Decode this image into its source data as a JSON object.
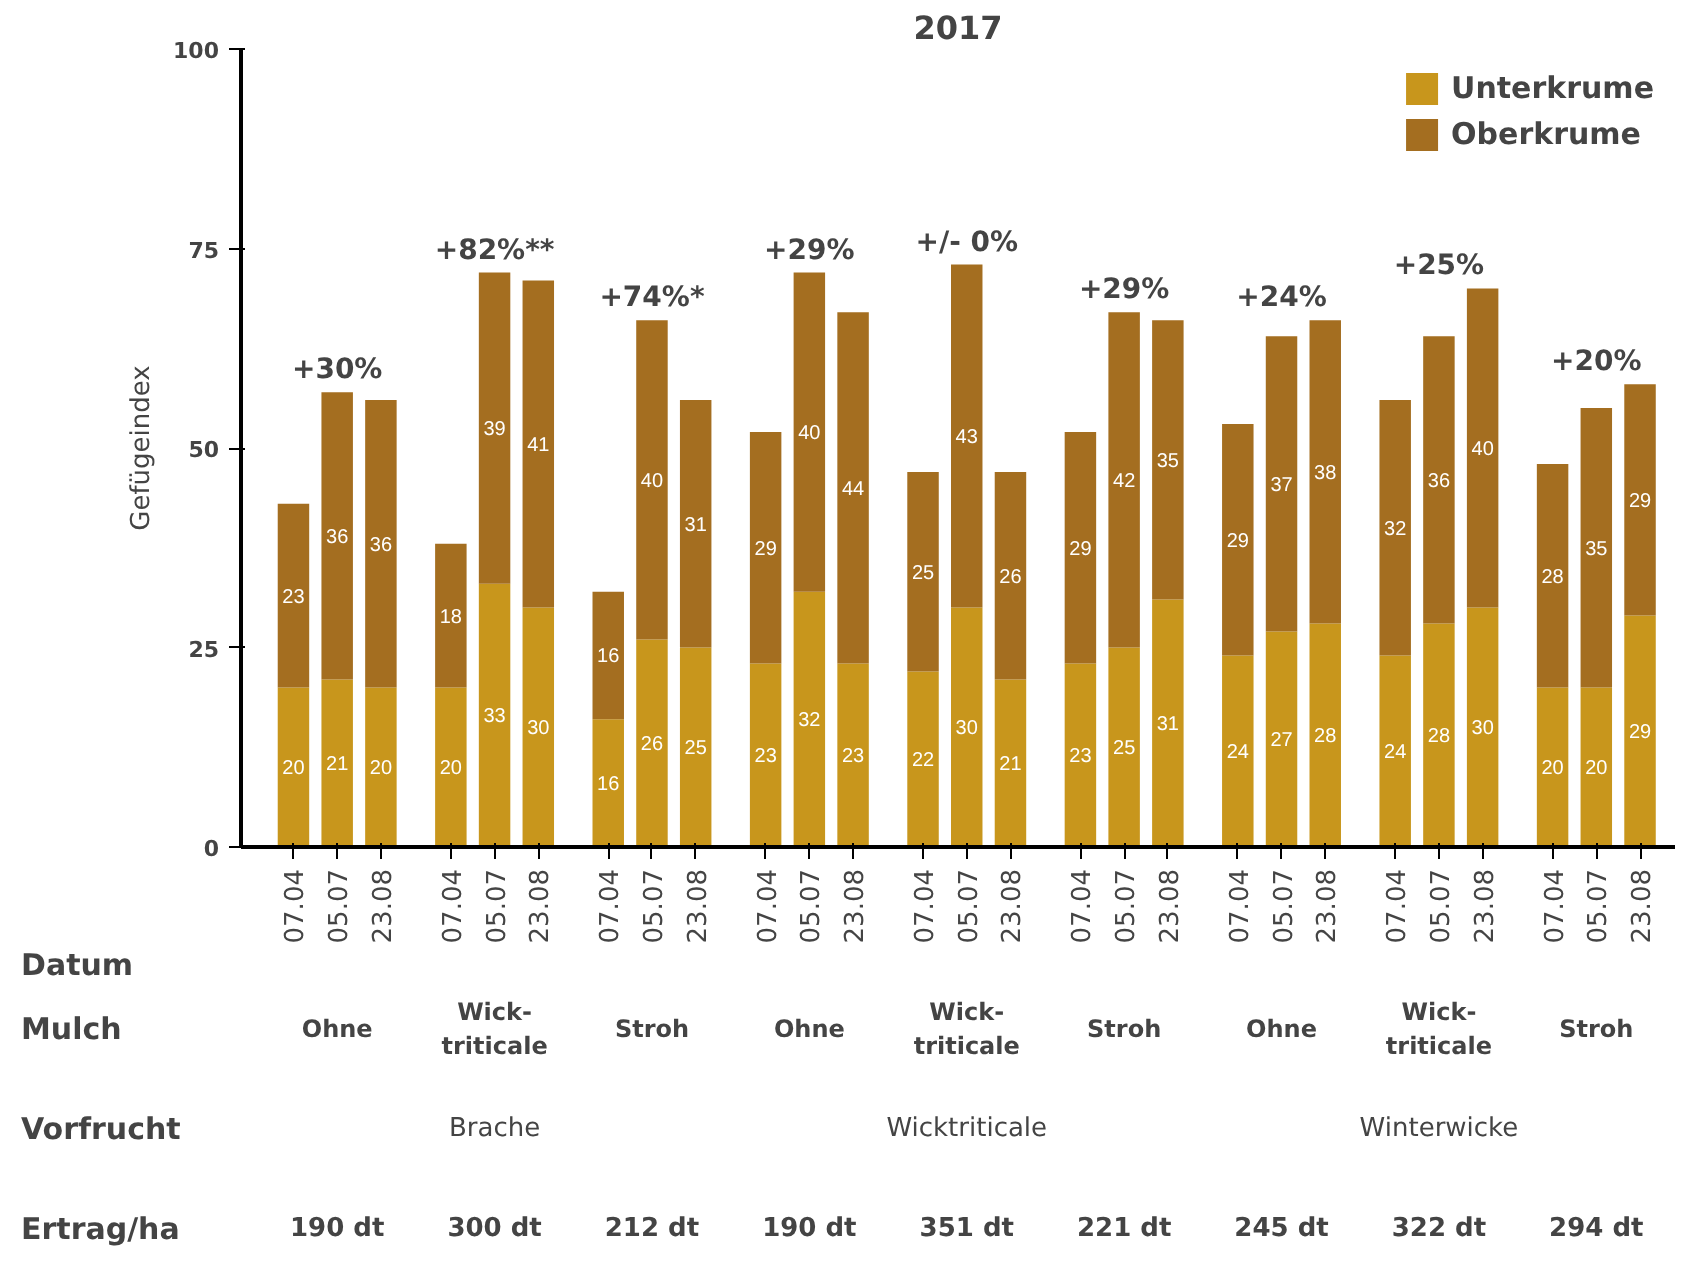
{
  "chart_data": {
    "type": "bar",
    "title": "2017",
    "ylabel": "Gefügeindex",
    "stacked": true,
    "data_labels": true,
    "legend": "top right",
    "grid": false,
    "categories": [
      "07.04",
      "05.07",
      "23.08",
      "07.04",
      "05.07",
      "23.08",
      "07.04",
      "05.07",
      "23.08",
      "07.04",
      "05.07",
      "23.08",
      "07.04",
      "05.07",
      "23.08",
      "07.04",
      "05.07",
      "23.08",
      "07.04",
      "05.07",
      "23.08",
      "07.04",
      "05.07",
      "23.08",
      "07.04",
      "05.07",
      "23.08"
    ],
    "series": [
      {
        "name": "Unterkrume",
        "color": "#c8961c",
        "values": [
          20,
          21,
          20,
          20,
          33,
          30,
          16,
          26,
          25,
          23,
          32,
          23,
          22,
          30,
          21,
          23,
          25,
          31,
          24,
          27,
          28,
          24,
          28,
          30,
          20,
          20,
          29
        ]
      },
      {
        "name": "Oberkrume",
        "color": "#a46e20",
        "values": [
          23,
          36,
          36,
          18,
          39,
          41,
          16,
          40,
          31,
          29,
          40,
          44,
          25,
          43,
          26,
          29,
          42,
          35,
          29,
          37,
          38,
          32,
          36,
          40,
          28,
          35,
          29
        ]
      }
    ],
    "ylim": [
      0,
      100
    ],
    "yticks": [
      0,
      25,
      50,
      75,
      100
    ],
    "annotations": [
      "+30%",
      "+82%**",
      "+74%*",
      "+29%",
      "+/- 0%",
      "+29%",
      "+24%",
      "+25%",
      "+20%",
      "Datum",
      "Mulch",
      "Vorfrucht",
      "Ertrag/ha",
      "Ohne",
      "Wick-\ntriticale",
      "Stroh",
      "Ohne",
      "Wick-\ntriticale",
      "Stroh",
      "Ohne",
      "Wick-\ntriticale",
      "Stroh",
      "Brache",
      "Wicktriticale",
      "Winterwicke",
      "190 dt",
      "300 dt",
      "212 dt",
      "190 dt",
      "351 dt",
      "221 dt",
      "245 dt",
      "322 dt",
      "294 dt"
    ]
  }
}
